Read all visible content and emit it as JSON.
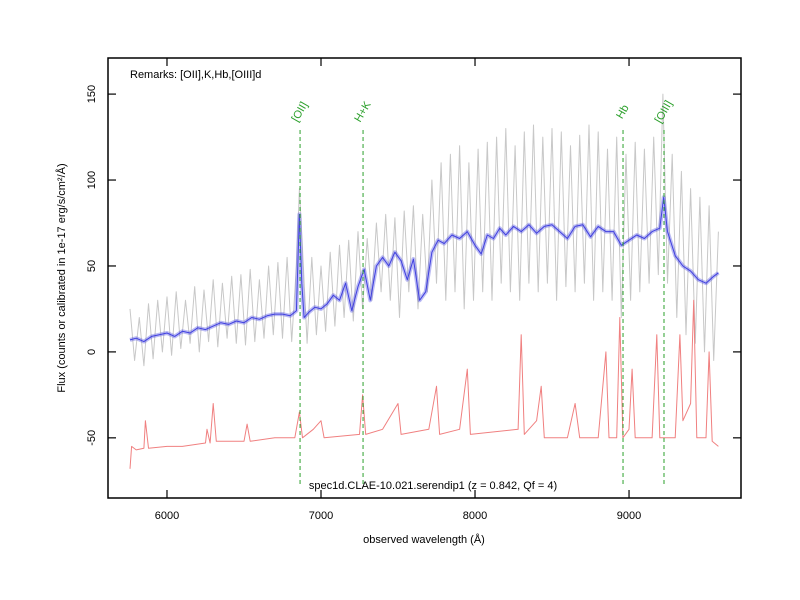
{
  "chart_data": {
    "type": "line",
    "xlabel": "observed wavelength (Å)",
    "ylabel": "Flux (counts or calibrated in 1e-17 erg/s/cm²/Å)",
    "remarks": "Remarks: [OII],K,Hb,[OIII]d",
    "caption": "spec1d.CLAE-10.021.serendip1 (z = 0.842, Qf = 4)",
    "xlim": [
      5617,
      9727
    ],
    "ylim": [
      -85,
      171
    ],
    "xticks": [
      6000,
      7000,
      8000,
      9000
    ],
    "yticks": [
      -50,
      0,
      50,
      100,
      150
    ],
    "lines": [
      {
        "label": "[OII]",
        "x": 6864,
        "color": "#2ca02c"
      },
      {
        "label": "H+K",
        "x": 7273,
        "color": "#2ca02c"
      },
      {
        "label": "Hb",
        "x": 8961,
        "color": "#2ca02c"
      },
      {
        "label": "[OIII]",
        "x": 9227,
        "color": "#2ca02c"
      }
    ],
    "series": [
      {
        "color": "#c8c8c8",
        "x": [
          5760,
          5790,
          5820,
          5850,
          5880,
          5910,
          5940,
          5970,
          6000,
          6030,
          6060,
          6090,
          6120,
          6150,
          6180,
          6210,
          6240,
          6270,
          6300,
          6330,
          6360,
          6390,
          6420,
          6450,
          6480,
          6510,
          6540,
          6570,
          6600,
          6630,
          6660,
          6690,
          6720,
          6750,
          6780,
          6810,
          6840,
          6860,
          6880,
          6910,
          6940,
          6970,
          7000,
          7030,
          7060,
          7090,
          7120,
          7150,
          7180,
          7210,
          7240,
          7270,
          7300,
          7330,
          7360,
          7390,
          7420,
          7450,
          7480,
          7510,
          7540,
          7570,
          7600,
          7630,
          7660,
          7690,
          7720,
          7750,
          7780,
          7810,
          7840,
          7870,
          7900,
          7930,
          7960,
          7990,
          8020,
          8050,
          8080,
          8110,
          8140,
          8170,
          8200,
          8230,
          8260,
          8290,
          8320,
          8350,
          8380,
          8410,
          8440,
          8470,
          8500,
          8530,
          8560,
          8590,
          8620,
          8650,
          8680,
          8710,
          8740,
          8770,
          8800,
          8830,
          8860,
          8890,
          8920,
          8950,
          8980,
          9010,
          9040,
          9070,
          9100,
          9130,
          9160,
          9190,
          9220,
          9250,
          9280,
          9310,
          9340,
          9370,
          9400,
          9430,
          9460,
          9490,
          9520,
          9550,
          9580
        ],
        "values": [
          25,
          -5,
          20,
          -8,
          28,
          -4,
          30,
          0,
          32,
          -2,
          35,
          2,
          30,
          5,
          38,
          0,
          36,
          6,
          42,
          3,
          40,
          8,
          44,
          5,
          45,
          4,
          48,
          6,
          42,
          8,
          50,
          10,
          52,
          8,
          55,
          6,
          50,
          95,
          60,
          5,
          55,
          10,
          50,
          12,
          58,
          15,
          62,
          20,
          65,
          18,
          70,
          25,
          66,
          30,
          75,
          35,
          80,
          30,
          78,
          20,
          82,
          35,
          85,
          25,
          80,
          35,
          100,
          40,
          110,
          30,
          115,
          35,
          120,
          25,
          110,
          30,
          118,
          35,
          122,
          30,
          125,
          40,
          130,
          35,
          120,
          30,
          128,
          40,
          132,
          35,
          125,
          40,
          130,
          30,
          128,
          38,
          120,
          35,
          126,
          40,
          132,
          30,
          128,
          35,
          118,
          30,
          125,
          20,
          115,
          30,
          122,
          35,
          118,
          40,
          125,
          45,
          150,
          40,
          115,
          20,
          105,
          10,
          95,
          5,
          90,
          0,
          85,
          -5,
          70
        ]
      },
      {
        "color": "#f08080",
        "x": [
          5760,
          5770,
          5800,
          5850,
          5860,
          5880,
          6000,
          6100,
          6250,
          6260,
          6280,
          6300,
          6320,
          6500,
          6520,
          6540,
          6700,
          6830,
          6860,
          6880,
          6950,
          7000,
          7020,
          7250,
          7270,
          7290,
          7400,
          7500,
          7520,
          7700,
          7750,
          7770,
          7900,
          7950,
          7970,
          8280,
          8300,
          8320,
          8400,
          8430,
          8450,
          8600,
          8650,
          8680,
          8800,
          8850,
          8870,
          8920,
          8940,
          8960,
          9000,
          9020,
          9040,
          9150,
          9180,
          9200,
          9300,
          9330,
          9350,
          9400,
          9420,
          9440,
          9500,
          9520,
          9540,
          9580
        ],
        "values": [
          -68,
          -55,
          -57,
          -56,
          -40,
          -56,
          -55,
          -55,
          -53,
          -45,
          -53,
          -30,
          -52,
          -52,
          -42,
          -52,
          -50,
          -50,
          -35,
          -50,
          -45,
          -40,
          -50,
          -48,
          -25,
          -48,
          -45,
          -30,
          -48,
          -45,
          -20,
          -48,
          -45,
          -10,
          -48,
          -45,
          10,
          -48,
          -40,
          -20,
          -50,
          -50,
          -30,
          -50,
          -50,
          0,
          -50,
          -50,
          20,
          -50,
          -45,
          -10,
          -50,
          -50,
          10,
          -50,
          -50,
          10,
          -40,
          -30,
          30,
          -50,
          -50,
          0,
          -52,
          -55
        ]
      },
      {
        "color": "#4040e0",
        "x": [
          5760,
          5800,
          5850,
          5900,
          5950,
          6000,
          6050,
          6100,
          6150,
          6200,
          6250,
          6300,
          6350,
          6400,
          6450,
          6500,
          6550,
          6600,
          6650,
          6700,
          6750,
          6800,
          6840,
          6860,
          6875,
          6890,
          6920,
          6960,
          7000,
          7040,
          7080,
          7120,
          7160,
          7200,
          7240,
          7280,
          7320,
          7360,
          7400,
          7440,
          7480,
          7520,
          7560,
          7600,
          7640,
          7680,
          7720,
          7760,
          7800,
          7850,
          7900,
          7950,
          8000,
          8040,
          8080,
          8120,
          8160,
          8200,
          8250,
          8300,
          8350,
          8400,
          8450,
          8500,
          8550,
          8600,
          8650,
          8700,
          8750,
          8800,
          8850,
          8900,
          8950,
          9000,
          9050,
          9100,
          9150,
          9200,
          9225,
          9250,
          9300,
          9350,
          9400,
          9450,
          9500,
          9550,
          9580
        ],
        "values": [
          7,
          8,
          6,
          9,
          10,
          11,
          9,
          12,
          11,
          14,
          13,
          15,
          17,
          16,
          18,
          17,
          20,
          19,
          21,
          22,
          22,
          21,
          24,
          80,
          40,
          20,
          23,
          26,
          25,
          28,
          33,
          30,
          40,
          24,
          38,
          48,
          30,
          50,
          55,
          50,
          58,
          53,
          42,
          54,
          30,
          35,
          58,
          65,
          63,
          68,
          66,
          70,
          62,
          57,
          68,
          66,
          72,
          68,
          73,
          70,
          74,
          69,
          73,
          74,
          70,
          66,
          73,
          74,
          67,
          73,
          70,
          70,
          62,
          65,
          68,
          66,
          70,
          72,
          90,
          70,
          56,
          50,
          47,
          42,
          40,
          44,
          46
        ]
      }
    ]
  }
}
